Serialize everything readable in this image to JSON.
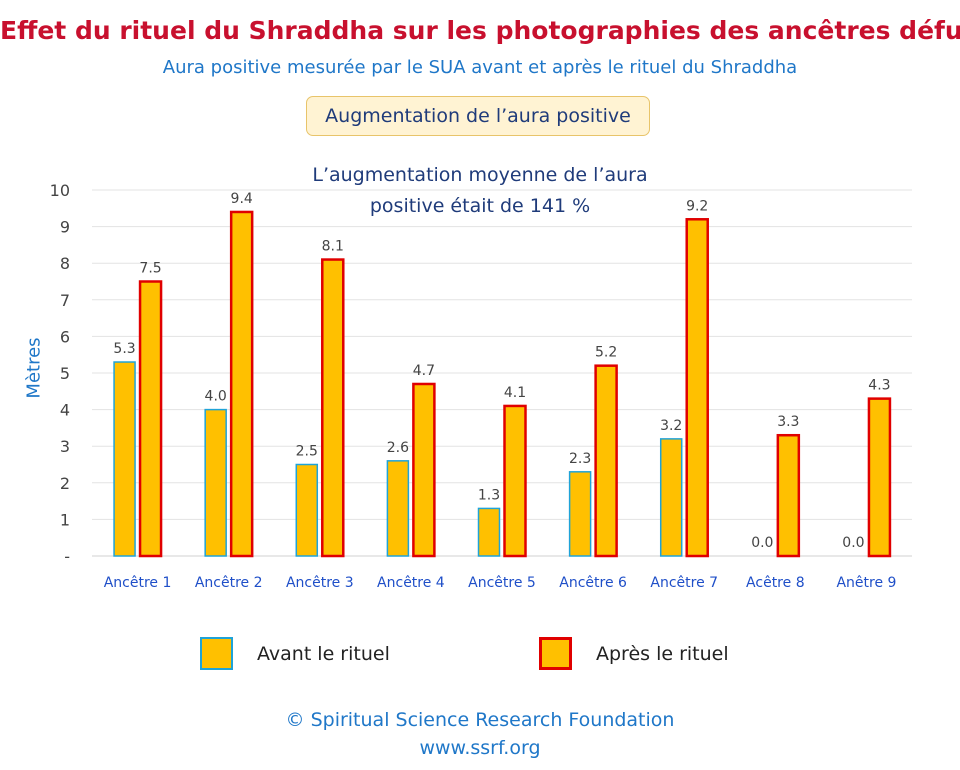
{
  "header": {
    "title": "Effet du rituel du Shraddha sur les photographies des ancêtres défunts",
    "subtitle": "Aura positive mesurée par le SUA avant et après le rituel du Shraddha",
    "badge": "Augmentation de l’aura positive"
  },
  "chart_data": {
    "type": "bar",
    "title": "",
    "annotation": [
      "L’augmentation moyenne de l’aura",
      "positive était de 141 %"
    ],
    "categories": [
      "Ancêtre 1",
      "Ancêtre 2",
      "Ancêtre 3",
      "Ancêtre 4",
      "Ancêtre 5",
      "Ancêtre 6",
      "Ancêtre 7",
      "Acêtre 8",
      "Anêtre 9"
    ],
    "series": [
      {
        "name": "Avant le rituel",
        "values": [
          5.3,
          4.0,
          2.5,
          2.6,
          1.3,
          2.3,
          3.2,
          0.0,
          0.0
        ],
        "fill": "#ffc000",
        "stroke": "#1fa3d8"
      },
      {
        "name": "Après le rituel",
        "values": [
          7.5,
          9.4,
          8.1,
          4.7,
          4.1,
          5.2,
          9.2,
          3.3,
          4.3
        ],
        "fill": "#ffc000",
        "stroke": "#e00000"
      }
    ],
    "ylabel": "Mètres",
    "xlabel": "",
    "ylim": [
      0,
      10
    ],
    "yticks": [
      "-",
      "1",
      "2",
      "3",
      "4",
      "5",
      "6",
      "7",
      "8",
      "9",
      "10"
    ],
    "grid": true,
    "legend": "bottom"
  },
  "footer": {
    "copyright": "© Spiritual Science Research Foundation",
    "website": "www.ssrf.org"
  }
}
